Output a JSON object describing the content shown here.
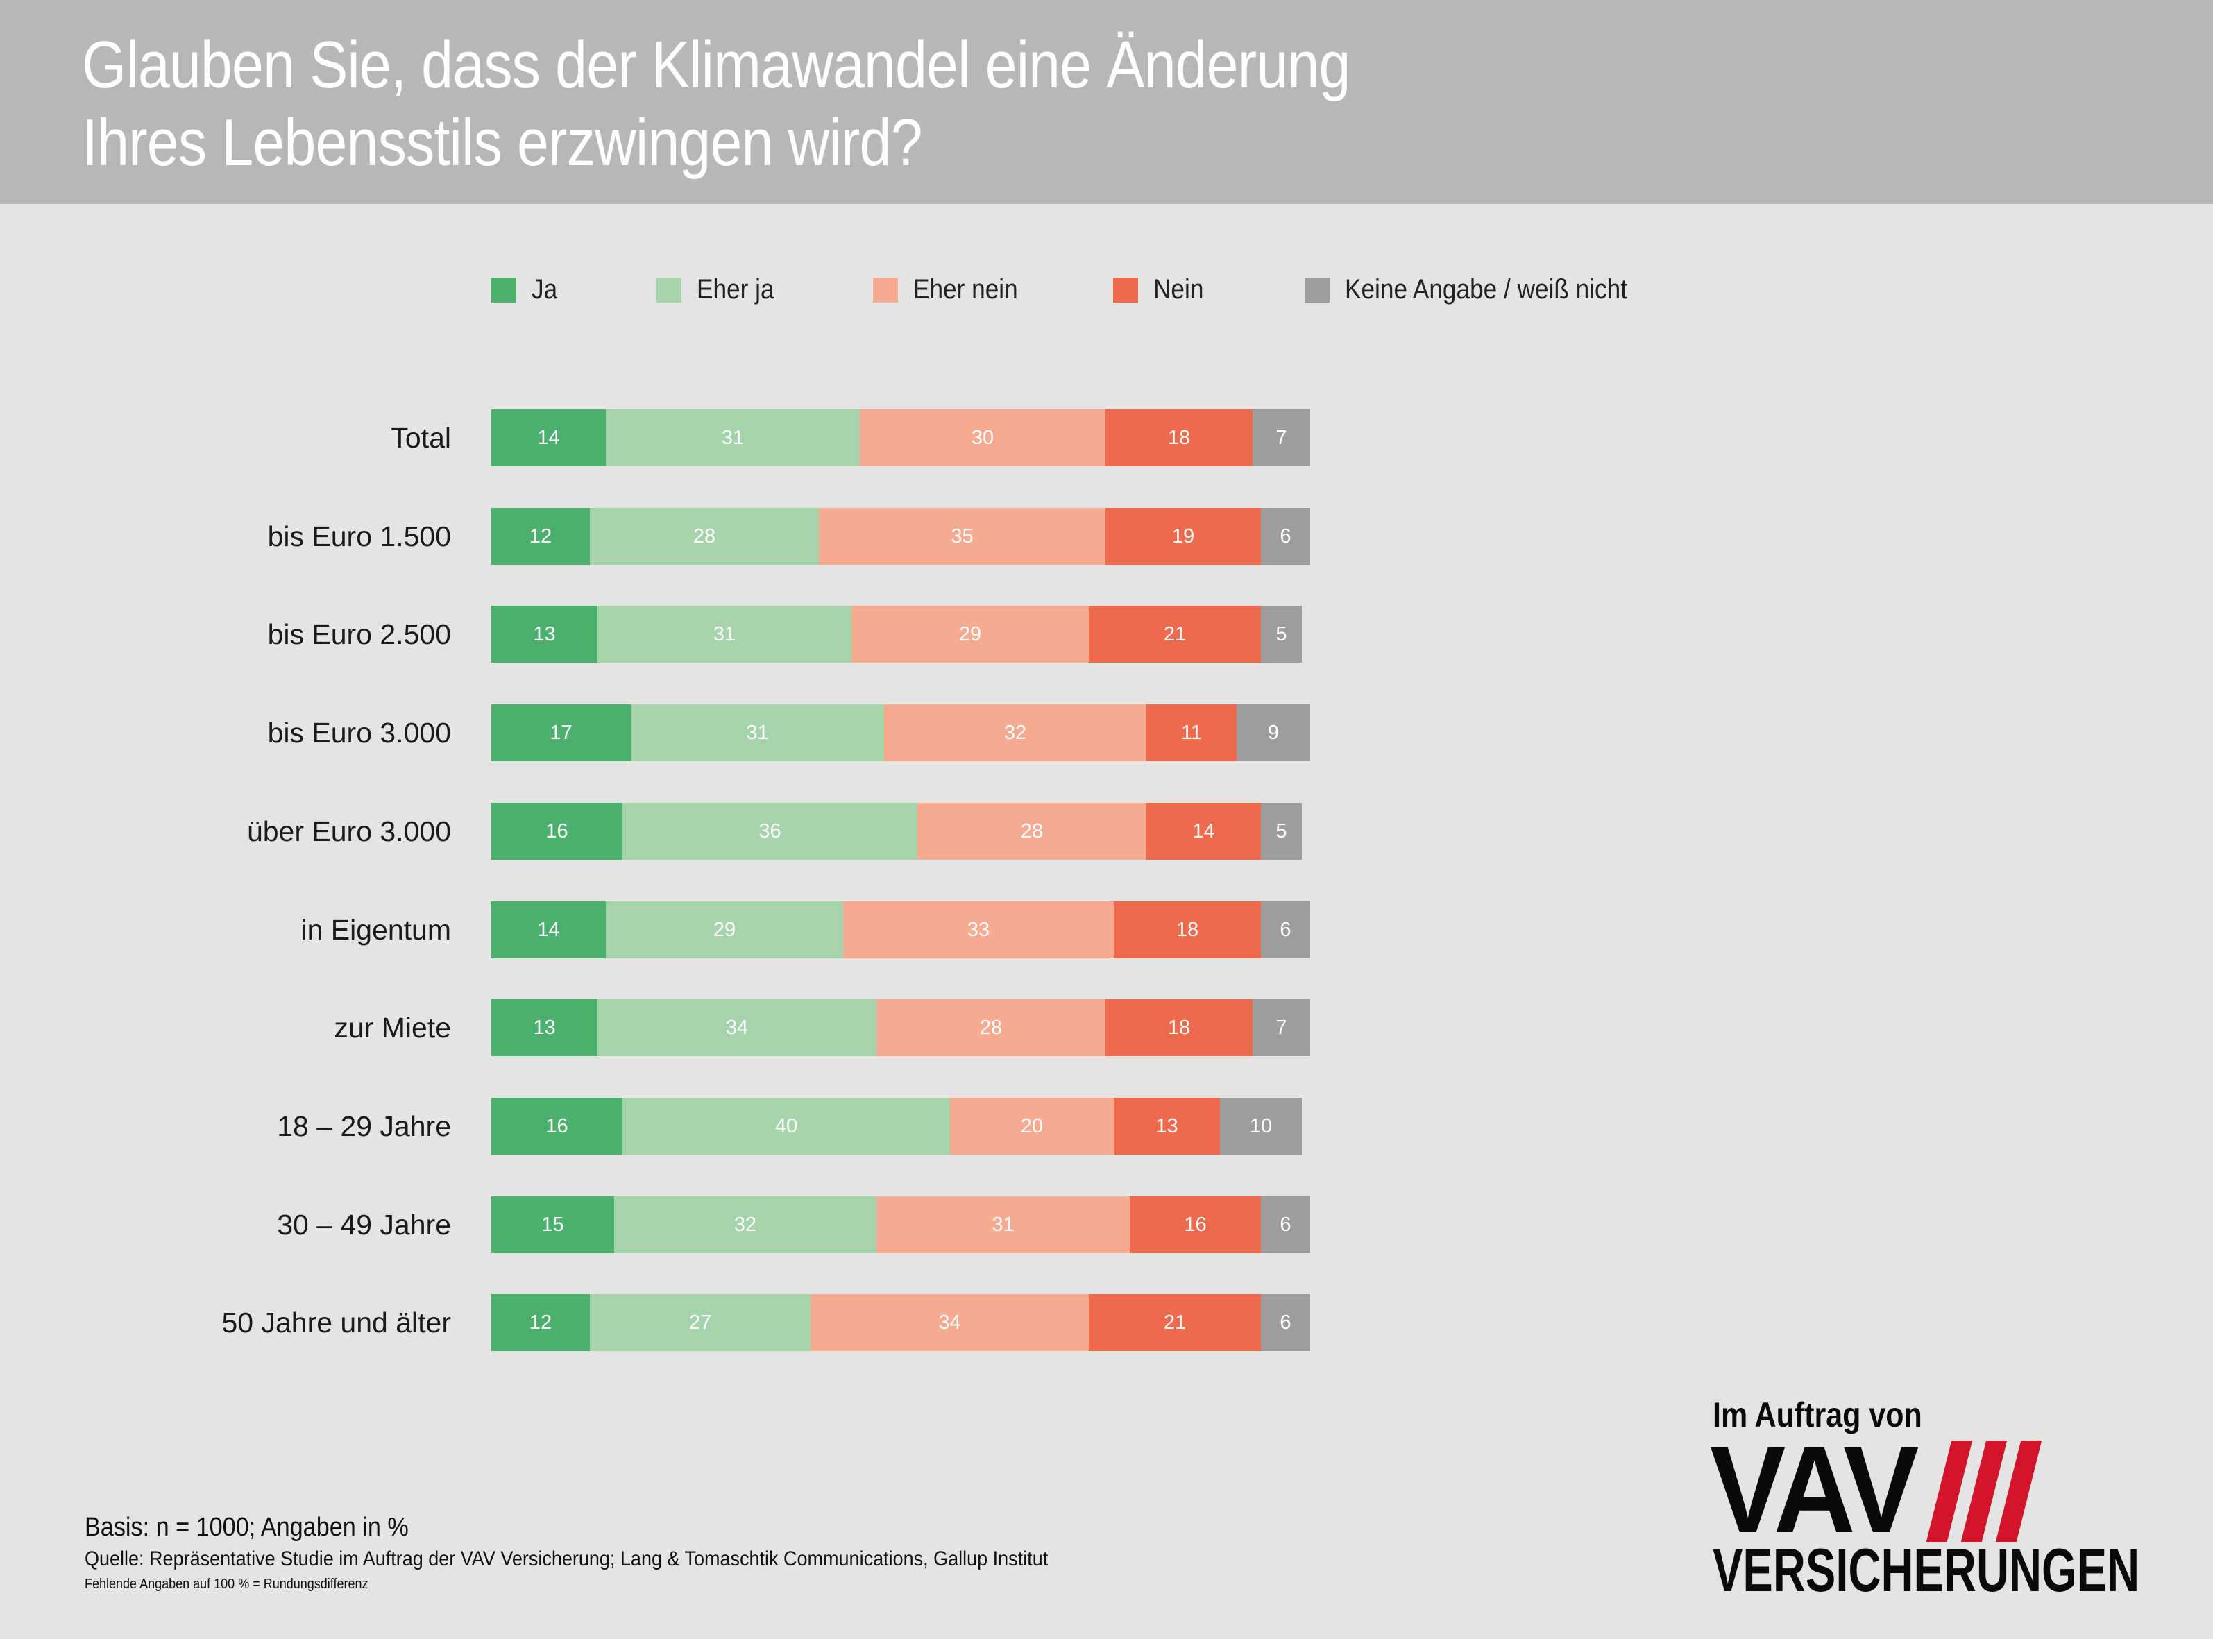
{
  "chart_data": {
    "type": "bar",
    "orientation": "horizontal",
    "stacked": true,
    "title": "Glauben Sie, dass der Klimawandel eine Änderung Ihres Lebensstils erzwingen wird?",
    "title_lines": [
      "Glauben Sie, dass der Klimawandel eine Änderung",
      "Ihres Lebensstils erzwingen wird?"
    ],
    "xlabel": "",
    "ylabel": "",
    "legend_position": "top",
    "grid": false,
    "categories": [
      "Total",
      "bis Euro 1.500",
      "bis Euro 2.500",
      "bis Euro 3.000",
      "über Euro 3.000",
      "in Eigentum",
      "zur Miete",
      "18 – 29 Jahre",
      "30 – 49 Jahre",
      "50 Jahre und älter"
    ],
    "series": [
      {
        "name": "Ja",
        "color": "#4bb06d",
        "values": [
          14,
          12,
          13,
          17,
          16,
          14,
          13,
          16,
          15,
          12
        ]
      },
      {
        "name": "Eher ja",
        "color": "#a4d3ac",
        "values": [
          31,
          28,
          31,
          31,
          36,
          29,
          34,
          40,
          32,
          27
        ]
      },
      {
        "name": "Eher nein",
        "color": "#f6aa8f",
        "values": [
          30,
          35,
          29,
          32,
          28,
          33,
          28,
          20,
          31,
          34
        ]
      },
      {
        "name": "Nein",
        "color": "#ef6a4c",
        "values": [
          18,
          19,
          21,
          11,
          14,
          18,
          18,
          13,
          16,
          21
        ]
      },
      {
        "name": "Keine Angabe / weiß nicht",
        "color": "#9d9d9d",
        "values": [
          7,
          6,
          5,
          9,
          5,
          6,
          7,
          10,
          6,
          6
        ]
      }
    ]
  },
  "footer": {
    "basis": "Basis: n = 1000; Angaben in %",
    "source": "Quelle: Repräsentative Studie im Auftrag der VAV Versicherung; Lang & Tomaschtik Communications, Gallup Institut",
    "note": "Fehlende Angaben auf 100 % = Rundungsdifferenz"
  },
  "logo": {
    "caption": "Im Auftrag von",
    "mark": "VAV",
    "subtitle": "VERSICHERUNGEN",
    "stripe_color": "#d3152b"
  }
}
